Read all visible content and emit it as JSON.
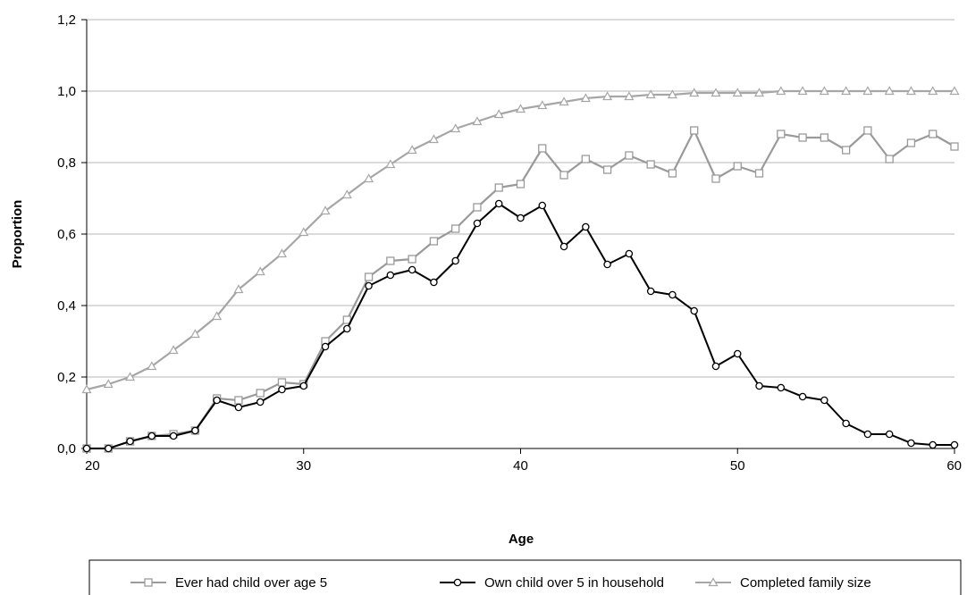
{
  "chart_data": {
    "type": "line",
    "xlabel": "Age",
    "ylabel": "Proportion",
    "xlim": [
      20,
      60
    ],
    "ylim": [
      0,
      1.2
    ],
    "xticks": [
      "20",
      "30",
      "40",
      "50",
      "60"
    ],
    "yticks": [
      "0,0",
      "0,2",
      "0,4",
      "0,6",
      "0,8",
      "1,0",
      "1,2"
    ],
    "grid": "horizontal",
    "legend": "bottom",
    "x": [
      20,
      21,
      22,
      23,
      24,
      25,
      26,
      27,
      28,
      29,
      30,
      31,
      32,
      33,
      34,
      35,
      36,
      37,
      38,
      39,
      40,
      41,
      42,
      43,
      44,
      45,
      46,
      47,
      48,
      49,
      50,
      51,
      52,
      53,
      54,
      55,
      56,
      57,
      58,
      59,
      60
    ],
    "series": [
      {
        "name": "Ever had child over age  5",
        "marker": "square",
        "color": "#9a9a9a",
        "values": [
          0.0,
          0.0,
          0.02,
          0.035,
          0.04,
          0.05,
          0.14,
          0.135,
          0.155,
          0.185,
          0.18,
          0.3,
          0.36,
          0.48,
          0.525,
          0.53,
          0.58,
          0.615,
          0.675,
          0.73,
          0.74,
          0.84,
          0.765,
          0.81,
          0.78,
          0.82,
          0.795,
          0.77,
          0.89,
          0.755,
          0.79,
          0.77,
          0.88,
          0.87,
          0.87,
          0.835,
          0.89,
          0.81,
          0.855,
          0.88,
          0.845
        ]
      },
      {
        "name": "Own child over 5 in household",
        "marker": "circle",
        "color": "#000000",
        "values": [
          0.0,
          0.0,
          0.02,
          0.035,
          0.035,
          0.05,
          0.135,
          0.115,
          0.13,
          0.165,
          0.175,
          0.285,
          0.335,
          0.455,
          0.485,
          0.5,
          0.465,
          0.525,
          0.63,
          0.685,
          0.645,
          0.68,
          0.565,
          0.62,
          0.515,
          0.545,
          0.44,
          0.43,
          0.385,
          0.23,
          0.265,
          0.175,
          0.17,
          0.145,
          0.135,
          0.07,
          0.04,
          0.04,
          0.015,
          0.01,
          0.01
        ]
      },
      {
        "name": "Completed family size",
        "marker": "triangle",
        "color": "#a6a6a6",
        "values": [
          0.165,
          0.18,
          0.2,
          0.23,
          0.275,
          0.32,
          0.37,
          0.445,
          0.495,
          0.545,
          0.605,
          0.665,
          0.71,
          0.755,
          0.795,
          0.835,
          0.865,
          0.895,
          0.915,
          0.935,
          0.95,
          0.96,
          0.97,
          0.98,
          0.985,
          0.985,
          0.99,
          0.99,
          0.995,
          0.995,
          0.995,
          0.995,
          1.0,
          1.0,
          1.0,
          1.0,
          1.0,
          1.0,
          1.0,
          1.0,
          1.0
        ]
      }
    ]
  }
}
